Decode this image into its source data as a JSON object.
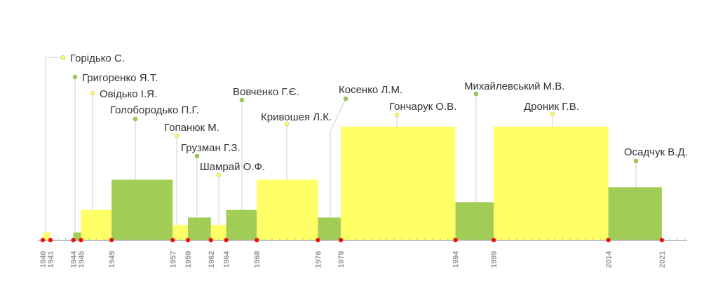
{
  "chart_data": {
    "type": "bar",
    "title": "",
    "xlabel": "",
    "ylabel": "",
    "x_range": [
      1940,
      2024
    ],
    "colors": {
      "yellow": "#FFFF66",
      "green": "#A1CC55",
      "dot": "#EE1111",
      "axis": "#BBBBBB",
      "year_text": "#999999",
      "leader": "#CCCCCC"
    },
    "height_encodes": "term length in years",
    "series": [
      {
        "name": "Горідько С.",
        "start": 1940,
        "end": 1941,
        "color": "yellow"
      },
      {
        "name": "Григоренко Я.Т.",
        "start": 1944,
        "end": 1945,
        "color": "green"
      },
      {
        "name": "Овідько І.Я.",
        "start": 1945,
        "end": 1949,
        "color": "yellow"
      },
      {
        "name": "Голобородько П.Г.",
        "start": 1949,
        "end": 1957,
        "color": "green"
      },
      {
        "name": "Гопанюк М.",
        "start": 1957,
        "end": 1959,
        "color": "yellow"
      },
      {
        "name": "Грузман Г.З.",
        "start": 1959,
        "end": 1962,
        "color": "green"
      },
      {
        "name": "Шамрай О.Ф.",
        "start": 1962,
        "end": 1964,
        "color": "yellow"
      },
      {
        "name": "Вовченко Г.Є.",
        "start": 1964,
        "end": 1968,
        "color": "green"
      },
      {
        "name": "Кривошея Л.К.",
        "start": 1968,
        "end": 1976,
        "color": "yellow"
      },
      {
        "name": "Косенко Л.М.",
        "start": 1976,
        "end": 1979,
        "color": "green"
      },
      {
        "name": "Гончарук О.В.",
        "start": 1979,
        "end": 1994,
        "color": "yellow"
      },
      {
        "name": "Михайлевський М.В.",
        "start": 1994,
        "end": 1999,
        "color": "green"
      },
      {
        "name": "Дроник Г.В.",
        "start": 1999,
        "end": 2014,
        "color": "yellow"
      },
      {
        "name": "Осадчук В.Д.",
        "start": 2014,
        "end": 2021,
        "color": "green"
      }
    ],
    "year_labels": [
      "1940",
      "1941",
      "1944",
      "1945",
      "1949",
      "1957",
      "1959",
      "1962",
      "1964",
      "1968",
      "1976",
      "1979",
      "1994",
      "1999",
      "2014",
      "2021"
    ]
  }
}
